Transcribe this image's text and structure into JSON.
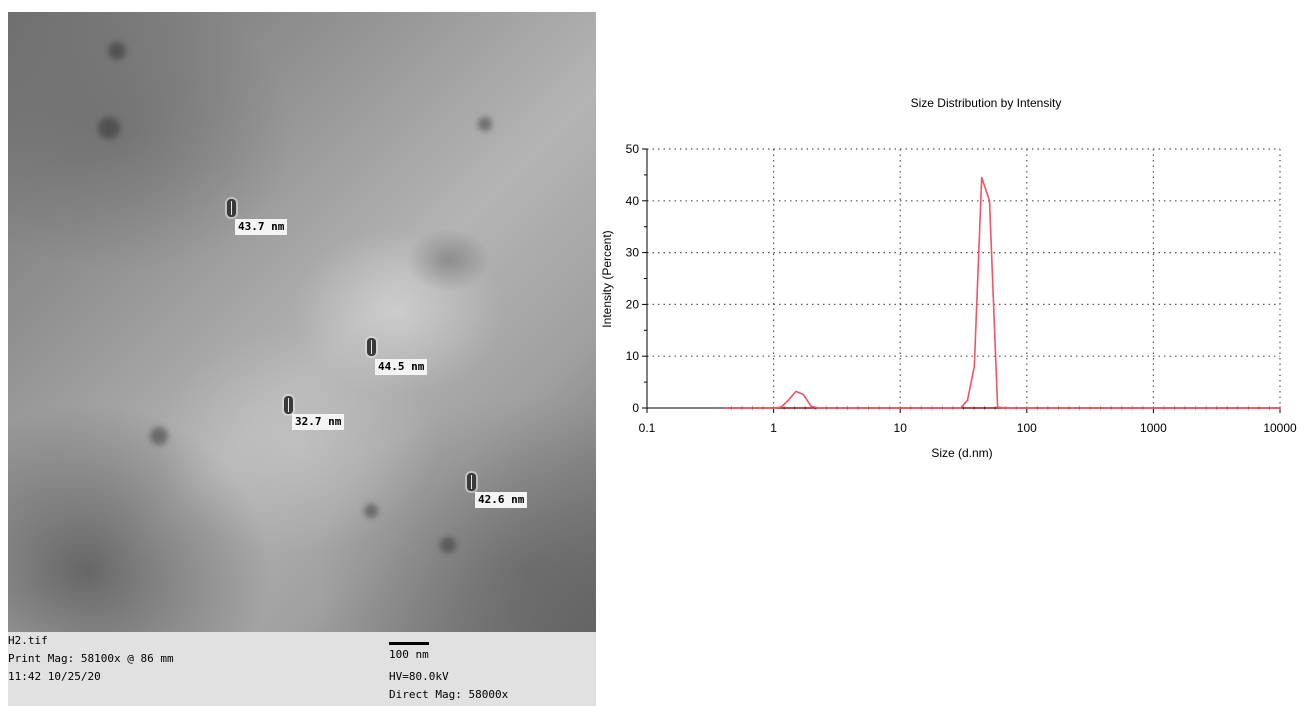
{
  "micrograph": {
    "labels": [
      {
        "text": "43.7 nm"
      },
      {
        "text": "44.5 nm"
      },
      {
        "text": "32.7 nm"
      },
      {
        "text": "42.6 nm"
      }
    ],
    "footer": {
      "filename": "H2.tif",
      "print_mag": "Print Mag: 58100x @ 86 mm",
      "datetime": "11:42 10/25/20",
      "scale_label": "100 nm",
      "hv": "HV=80.0kV",
      "direct_mag": "Direct Mag: 58000x"
    }
  },
  "chart_data": {
    "type": "line",
    "title": "Size Distribution by Intensity",
    "xlabel": "Size (d.nm)",
    "ylabel": "Intensity (Percent)",
    "x_scale": "log",
    "xlim": [
      0.1,
      10000
    ],
    "ylim": [
      0,
      50
    ],
    "x_ticks": [
      "0.1",
      "1",
      "10",
      "100",
      "1000",
      "10000"
    ],
    "y_ticks": [
      "0",
      "10",
      "20",
      "30",
      "40",
      "50"
    ],
    "grid": true,
    "colors": {
      "line": "#ee5566",
      "baseline": "#8b1a1a"
    },
    "series": [
      {
        "x": [
          0.4,
          0.6,
          0.9,
          1.0,
          1.15,
          1.32,
          1.5,
          1.72,
          1.98,
          2.3,
          5,
          15,
          30,
          34,
          38.5,
          44,
          50.7,
          58.8,
          68,
          100,
          1000,
          10000
        ],
        "values": [
          0,
          0,
          0,
          0,
          0.2,
          1.6,
          3.2,
          2.6,
          0.3,
          0,
          0,
          0,
          0,
          1.5,
          8,
          44.5,
          40,
          0.2,
          0,
          0,
          0,
          0
        ]
      }
    ]
  }
}
